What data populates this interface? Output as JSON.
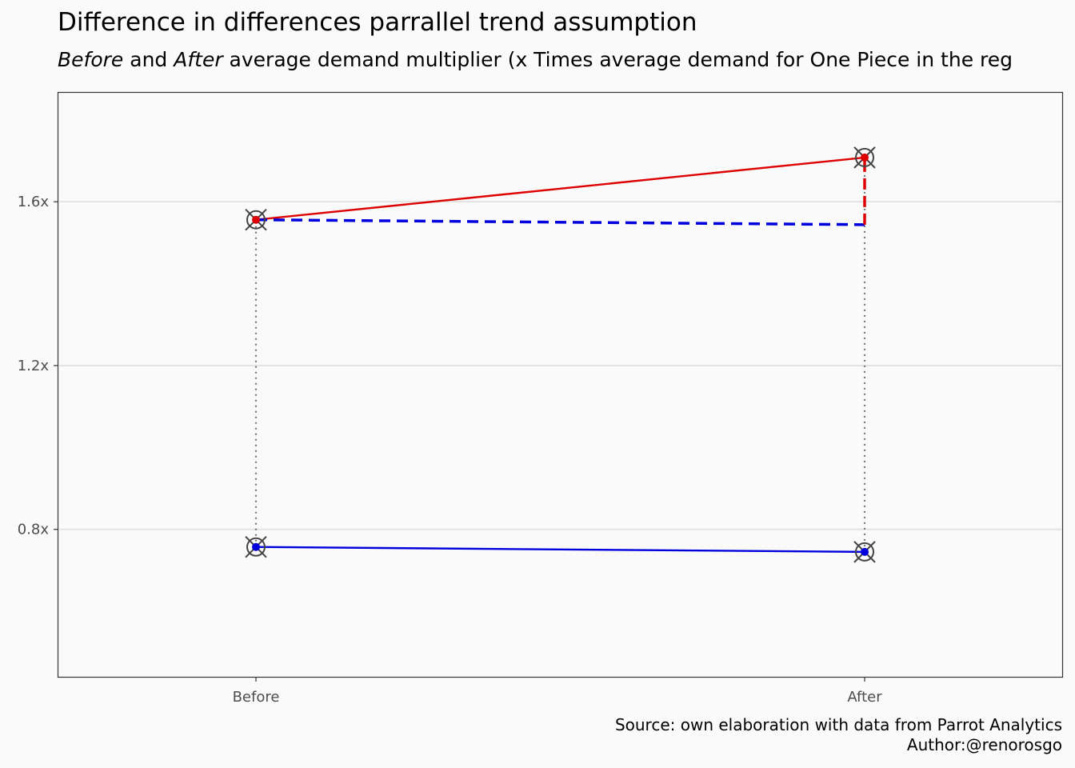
{
  "title": "Difference in differences parrallel trend assumption",
  "subtitle": {
    "before_word": "Before",
    "and_word": " and ",
    "after_word": "After",
    "rest": " average demand multiplier (x Times average demand for One Piece in the reg"
  },
  "caption": {
    "source": "Source: own elaboration with data from Parrot Analytics",
    "author": "Author:@renorosgo"
  },
  "chart_data": {
    "type": "line",
    "categories": [
      "Before",
      "After"
    ],
    "y_ticks": [
      0.8,
      1.2,
      1.6
    ],
    "y_tick_labels": [
      "0.8x",
      "1.2x",
      "1.6x"
    ],
    "ylim": [
      0.44,
      1.866
    ],
    "grid": true,
    "legend": "none",
    "series": [
      {
        "values": [
          1.556,
          1.708
        ],
        "color": "#dd0000",
        "style": "solid"
      },
      {
        "values": [
          0.757,
          0.745
        ],
        "color": "#0000dd",
        "style": "solid"
      },
      {
        "values": [
          1.556,
          1.544
        ],
        "color": "#0000dd",
        "style": "dashed"
      }
    ],
    "difference_segment": {
      "x": "After",
      "from": 1.544,
      "to": 1.708,
      "color": "#dd0000",
      "style": "dashed"
    },
    "connectors": [
      {
        "x": "Before",
        "from": 0.757,
        "to": 1.556,
        "color": "#777777",
        "style": "dotted"
      },
      {
        "x": "After",
        "from": 0.745,
        "to": 1.708,
        "color": "#777777",
        "style": "dotted"
      }
    ],
    "markers": [
      {
        "x": "Before",
        "y": 1.556
      },
      {
        "x": "After",
        "y": 1.708
      },
      {
        "x": "Before",
        "y": 0.757
      },
      {
        "x": "After",
        "y": 0.745
      }
    ]
  }
}
